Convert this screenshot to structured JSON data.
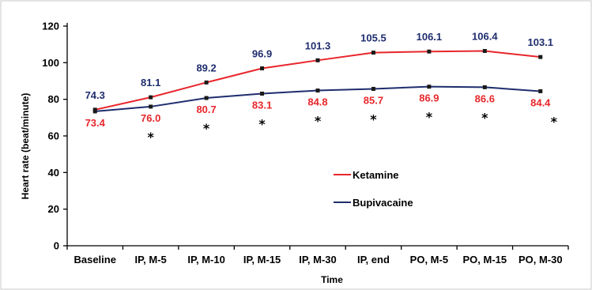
{
  "chart_data": {
    "type": "line",
    "categories": [
      "Baseline",
      "IP, M-5",
      "IP, M-10",
      "IP, M-15",
      "IP, M-30",
      "IP,  end",
      "PO, M-5",
      "PO, M-15",
      "PO, M-30"
    ],
    "series": [
      {
        "name": "Ketamine",
        "color": "#e8262b",
        "values": [
          74.3,
          81.1,
          89.2,
          96.9,
          101.3,
          105.5,
          106.1,
          106.4,
          103.1
        ],
        "labels": [
          "74.3",
          "81.1",
          "89.2",
          "96.9",
          "101.3",
          "105.5",
          "106.1",
          "106.4",
          "103.1"
        ],
        "label_color": "#1f2d6e"
      },
      {
        "name": "Bupivacaine",
        "color": "#1f2d6e",
        "values": [
          73.4,
          76.0,
          80.7,
          83.1,
          84.8,
          85.7,
          86.9,
          86.6,
          84.4
        ],
        "labels": [
          "73.4",
          "76.0",
          "80.7",
          "83.1",
          "84.8",
          "85.7",
          "86.9",
          "86.6",
          "84.4"
        ],
        "label_color": "#e8262b"
      }
    ],
    "significance_marker": "*",
    "significant": [
      false,
      true,
      true,
      true,
      true,
      true,
      true,
      true,
      true
    ],
    "xlabel": "Time",
    "ylabel": "Heart rate (beat/minute)",
    "ylim": [
      0,
      120
    ],
    "yticks": [
      "0",
      "20",
      "40",
      "60",
      "80",
      "100",
      "120"
    ],
    "grid": false,
    "legend_position": "center-right"
  }
}
